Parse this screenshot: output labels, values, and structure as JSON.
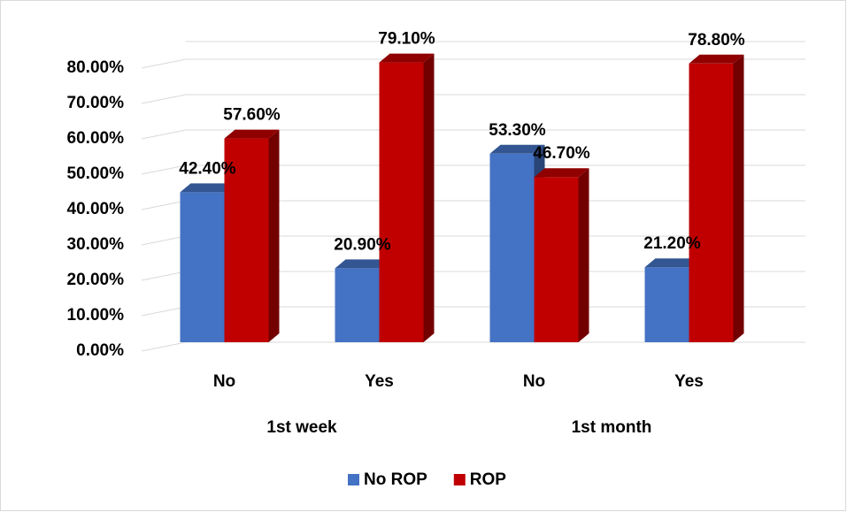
{
  "chart_data": {
    "type": "bar3d",
    "categories": [
      "No",
      "Yes",
      "No",
      "Yes"
    ],
    "groups": [
      "1st week",
      "1st month"
    ],
    "series": [
      {
        "name": "No ROP",
        "color": "#4472c4",
        "values": [
          42.4,
          20.9,
          53.3,
          21.2
        ],
        "value_labels": [
          "42.40%",
          "20.90%",
          "53.30%",
          "21.20%"
        ]
      },
      {
        "name": "ROP",
        "color": "#c00000",
        "values": [
          57.6,
          79.1,
          46.7,
          78.8
        ],
        "value_labels": [
          "57.60%",
          "79.10%",
          "46.70%",
          "78.80%"
        ]
      }
    ],
    "ylim": [
      0,
      85
    ],
    "yticks": [
      {
        "value": 0,
        "label": "0.00%"
      },
      {
        "value": 10,
        "label": "10.00%"
      },
      {
        "value": 20,
        "label": "20.00%"
      },
      {
        "value": 30,
        "label": "30.00%"
      },
      {
        "value": 40,
        "label": "40.00%"
      },
      {
        "value": 50,
        "label": "50.00%"
      },
      {
        "value": 60,
        "label": "60.00%"
      },
      {
        "value": 70,
        "label": "70.00%"
      },
      {
        "value": 80,
        "label": "80.00%"
      }
    ],
    "grid": true,
    "legend": "bottom"
  }
}
